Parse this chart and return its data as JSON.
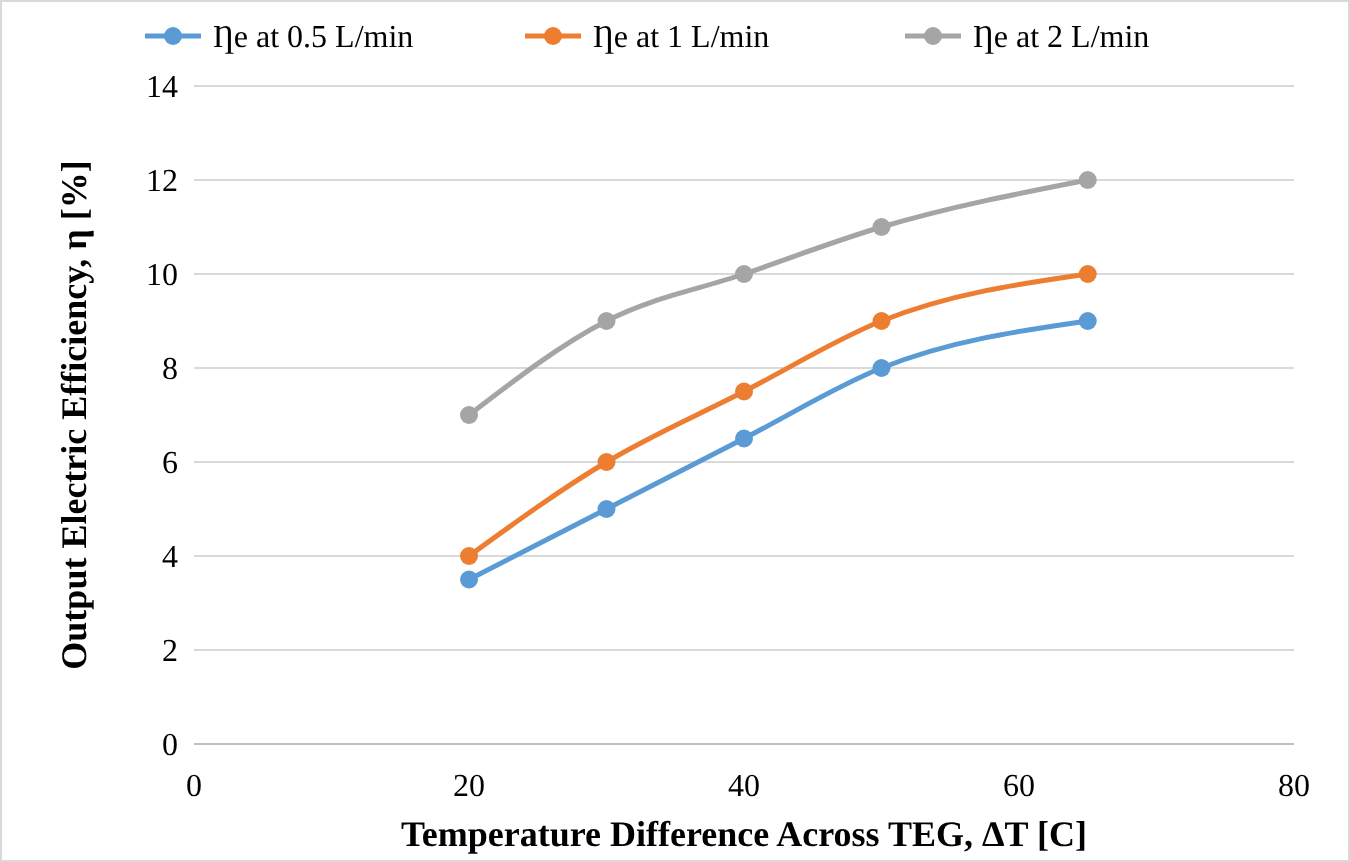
{
  "chart_data": {
    "type": "line",
    "xlabel": "Temperature Difference Across TEG, ΔT [C]",
    "ylabel": "Output Electric Efficiency, η [%]",
    "x": [
      20,
      30,
      40,
      50,
      65
    ],
    "series": [
      {
        "name": "Ƞe at 0.5 L/min",
        "color": "#5b9bd5",
        "values": [
          3.5,
          5,
          6.5,
          8,
          9
        ]
      },
      {
        "name": "Ƞe at 1 L/min",
        "color": "#ed7d31",
        "values": [
          4,
          6,
          7.5,
          9,
          10
        ]
      },
      {
        "name": "Ƞe at 2 L/min",
        "color": "#a5a5a5",
        "values": [
          7,
          9,
          10,
          11,
          12
        ]
      }
    ],
    "xlim": [
      0,
      80
    ],
    "xticks": [
      0,
      20,
      40,
      60,
      80
    ],
    "ylim": [
      0,
      14
    ],
    "yticks": [
      0,
      2,
      4,
      6,
      8,
      10,
      12,
      14
    ],
    "grid": "y",
    "legend": "top",
    "marker": "circle",
    "line_style": "solid"
  }
}
